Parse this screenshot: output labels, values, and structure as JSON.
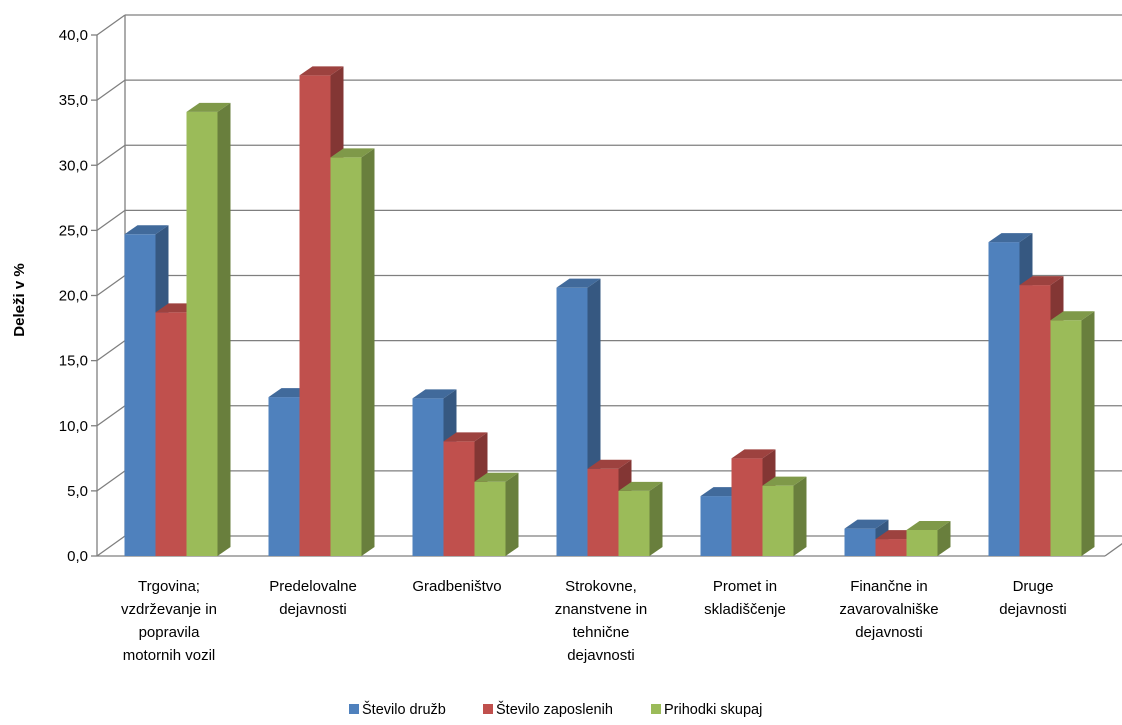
{
  "chart_data": {
    "type": "bar",
    "title": "",
    "ylabel": "Deleži v %",
    "xlabel": "",
    "ylim": [
      0,
      40
    ],
    "ytick_step": 5,
    "ytick_labels": [
      "0,0",
      "5,0",
      "10,0",
      "15,0",
      "20,0",
      "25,0",
      "30,0",
      "35,0",
      "40,0"
    ],
    "grid": true,
    "legend_position": "bottom",
    "categories": [
      [
        "Trgovina;",
        "vzdrževanje in",
        "popravila",
        "motornih vozil"
      ],
      [
        "Predelovalne",
        "dejavnosti"
      ],
      [
        "Gradbeništvo"
      ],
      [
        "Strokovne,",
        "znanstvene in",
        "tehnične",
        "dejavnosti"
      ],
      [
        "Promet in",
        "skladiščenje"
      ],
      [
        "Finančne in",
        "zavarovalniške",
        "dejavnosti"
      ],
      [
        "Druge",
        "dejavnosti"
      ]
    ],
    "series": [
      {
        "name": "Število družb",
        "color": "#4f81bd",
        "values": [
          24.7,
          12.2,
          12.1,
          20.6,
          4.6,
          2.1,
          24.1
        ]
      },
      {
        "name": "Število zaposlenih",
        "color": "#c0504d",
        "values": [
          18.7,
          36.9,
          8.8,
          6.7,
          7.5,
          1.3,
          20.8
        ]
      },
      {
        "name": "Prihodki skupaj",
        "color": "#9bbb59",
        "values": [
          34.1,
          30.6,
          5.7,
          5.0,
          5.4,
          2.0,
          18.1
        ]
      }
    ]
  }
}
